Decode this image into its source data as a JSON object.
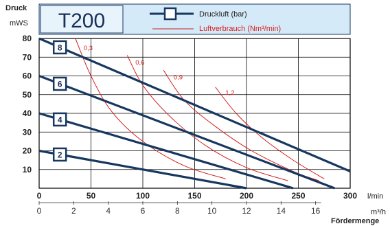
{
  "header": {
    "ylabel_title": "Druck",
    "ylabel_unit": "mWS",
    "model": "T200",
    "legend": [
      {
        "label": "Druckluft (bar)",
        "color": "#16375f"
      },
      {
        "label": "Luftverbrauch (Nm³/min)",
        "color": "#d42020"
      }
    ]
  },
  "chart_data": {
    "type": "line",
    "title": "T200",
    "ylabel": "Druck mWS",
    "xlabel": "Fördermenge",
    "x_unit_primary": "l/min",
    "x_unit_secondary": "m³/h",
    "xlim": [
      0,
      300
    ],
    "ylim": [
      0,
      80
    ],
    "grid": true,
    "x_ticks": [
      "0",
      "50",
      "100",
      "150",
      "200",
      "250",
      "300"
    ],
    "x_ticks_secondary": [
      "0",
      "2",
      "4",
      "6",
      "8",
      "10",
      "12",
      "14",
      "16"
    ],
    "y_ticks": [
      "10",
      "20",
      "30",
      "40",
      "50",
      "60",
      "70",
      "80"
    ],
    "series": [
      {
        "name": "8",
        "kind": "pressure",
        "color": "#16375f",
        "x": [
          0,
          300
        ],
        "y": [
          80,
          9
        ]
      },
      {
        "name": "6",
        "kind": "pressure",
        "color": "#16375f",
        "x": [
          0,
          285
        ],
        "y": [
          60,
          0
        ]
      },
      {
        "name": "4",
        "kind": "pressure",
        "color": "#16375f",
        "x": [
          0,
          245
        ],
        "y": [
          40,
          0
        ]
      },
      {
        "name": "2",
        "kind": "pressure",
        "color": "#16375f",
        "x": [
          0,
          200
        ],
        "y": [
          20,
          0
        ]
      },
      {
        "name": "0,3",
        "kind": "air",
        "color": "#d42020",
        "x": [
          35,
          50,
          70,
          100,
          140,
          180
        ],
        "y": [
          80,
          60,
          41,
          25,
          12,
          5
        ]
      },
      {
        "name": "0,6",
        "kind": "air",
        "color": "#d42020",
        "x": [
          85,
          100,
          125,
          160,
          200,
          240
        ],
        "y": [
          71,
          55,
          39,
          23,
          11,
          4
        ]
      },
      {
        "name": "0,9",
        "kind": "air",
        "color": "#d42020",
        "x": [
          120,
          140,
          170,
          205,
          245,
          270
        ],
        "y": [
          63,
          47,
          33,
          20,
          9,
          4
        ]
      },
      {
        "name": "1,2",
        "kind": "air",
        "color": "#d42020",
        "x": [
          170,
          190,
          215,
          245,
          275
        ],
        "y": [
          54,
          40,
          27,
          15,
          5
        ]
      }
    ]
  }
}
